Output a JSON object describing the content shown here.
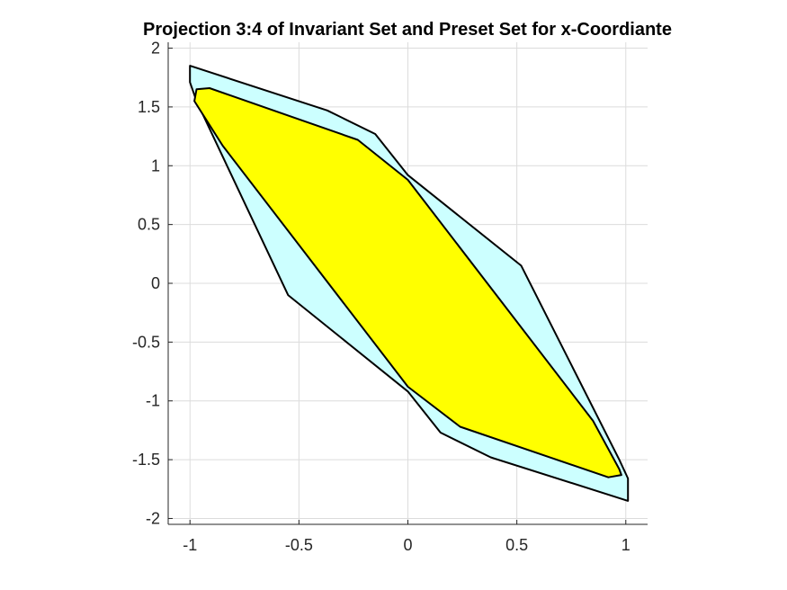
{
  "chart_data": {
    "type": "area",
    "title": "Projection 3:4 of Invariant Set and Preset Set for x-Coordiante",
    "xlabel": "",
    "ylabel": "",
    "xlim": [
      -1.1,
      1.1
    ],
    "ylim": [
      -2.05,
      2.05
    ],
    "x_ticks": [
      -1,
      -0.5,
      0,
      0.5,
      1
    ],
    "x_tick_labels": [
      "-1",
      "-0.5",
      "0",
      "0.5",
      "1"
    ],
    "y_ticks": [
      -2,
      -1.5,
      -1,
      -0.5,
      0,
      0.5,
      1,
      1.5,
      2
    ],
    "y_tick_labels": [
      "-2",
      "-1.5",
      "-1",
      "-0.5",
      "0",
      "0.5",
      "1",
      "1.5",
      "2"
    ],
    "grid": true,
    "series": [
      {
        "fill_color": "#ccffff",
        "edge_color": "#000000",
        "points": [
          [
            -1.0,
            1.85
          ],
          [
            -0.37,
            1.47
          ],
          [
            -0.15,
            1.27
          ],
          [
            0.0,
            0.92
          ],
          [
            0.52,
            0.15
          ],
          [
            0.97,
            -1.5
          ],
          [
            1.01,
            -1.66
          ],
          [
            1.01,
            -1.85
          ],
          [
            0.38,
            -1.48
          ],
          [
            0.15,
            -1.27
          ],
          [
            -0.0,
            -0.92
          ],
          [
            -0.55,
            -0.1
          ],
          [
            -0.97,
            1.55
          ],
          [
            -1.0,
            1.71
          ]
        ]
      },
      {
        "fill_color": "#ffff00",
        "edge_color": "#000000",
        "points": [
          [
            -0.97,
            1.65
          ],
          [
            -0.91,
            1.66
          ],
          [
            -0.23,
            1.22
          ],
          [
            0.0,
            0.88
          ],
          [
            0.85,
            -1.17
          ],
          [
            0.97,
            -1.58
          ],
          [
            0.98,
            -1.63
          ],
          [
            0.92,
            -1.65
          ],
          [
            0.24,
            -1.22
          ],
          [
            0.0,
            -0.88
          ],
          [
            -0.85,
            1.17
          ],
          [
            -0.98,
            1.55
          ]
        ]
      }
    ]
  }
}
